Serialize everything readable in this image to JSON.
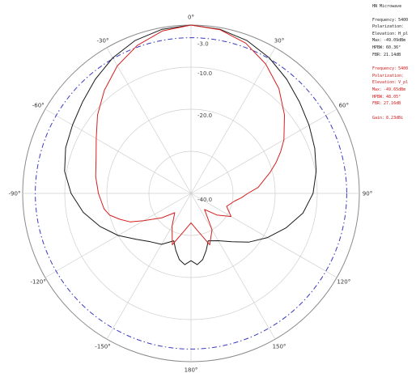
{
  "info": {
    "title": "HN Microwave",
    "black": [
      "Frequency：5400",
      "Polarization：",
      "Elevation：H_pl",
      "Max：-49.09dBm",
      "HPBW：60.36°",
      "FBR：21.14dB"
    ],
    "red": [
      "Frequency：5400",
      "Polarization：",
      "Elevation：V_pl",
      "Max：-49.65dBm",
      "HPBW：48.05°",
      "FBR：27.16dB"
    ],
    "gain": "Gain：8.23dBi"
  },
  "chart_data": {
    "type": "polar-line",
    "angle_ticks": [
      "0°",
      "30°",
      "60°",
      "90°",
      "120°",
      "150°",
      "180°",
      "-150°",
      "-120°",
      "-90°",
      "-60°",
      "-30°"
    ],
    "radial_labels": [
      "-3.0",
      "-10.0",
      "-20.0",
      "-40.0"
    ],
    "r_min_db": -40,
    "r_max_db": 0,
    "dashed_ring_db": -3,
    "colors": {
      "black": "#1a1a1a",
      "red": "#d42020",
      "dashed": "#3a3ac0",
      "grid": "#cfcfcf"
    },
    "series": [
      {
        "color": "black",
        "points": [
          [
            0,
            0
          ],
          [
            10,
            -0.4
          ],
          [
            20,
            -1.3
          ],
          [
            30,
            -2.8
          ],
          [
            40,
            -4.6
          ],
          [
            50,
            -6.3
          ],
          [
            60,
            -7.6
          ],
          [
            70,
            -8.7
          ],
          [
            80,
            -9.8
          ],
          [
            90,
            -11
          ],
          [
            100,
            -13
          ],
          [
            110,
            -16
          ],
          [
            120,
            -19
          ],
          [
            130,
            -22
          ],
          [
            140,
            -25
          ],
          [
            150,
            -27
          ],
          [
            160,
            -28
          ],
          [
            165,
            -26
          ],
          [
            170,
            -24
          ],
          [
            175,
            -23
          ],
          [
            180,
            -24
          ],
          [
            185,
            -23
          ],
          [
            190,
            -24
          ],
          [
            195,
            -26
          ],
          [
            200,
            -28
          ],
          [
            210,
            -26
          ],
          [
            220,
            -25
          ],
          [
            230,
            -23
          ],
          [
            240,
            -20
          ],
          [
            250,
            -17
          ],
          [
            260,
            -14
          ],
          [
            270,
            -11.5
          ],
          [
            280,
            -9.5
          ],
          [
            290,
            -8.3
          ],
          [
            300,
            -7.5
          ],
          [
            310,
            -6.3
          ],
          [
            320,
            -4.6
          ],
          [
            330,
            -2.8
          ],
          [
            340,
            -1.3
          ],
          [
            350,
            -0.4
          ],
          [
            360,
            0
          ]
        ]
      },
      {
        "color": "red",
        "points": [
          [
            0,
            0
          ],
          [
            10,
            -0.5
          ],
          [
            20,
            -2
          ],
          [
            30,
            -4.5
          ],
          [
            40,
            -7.5
          ],
          [
            50,
            -11
          ],
          [
            60,
            -14.5
          ],
          [
            65,
            -16.5
          ],
          [
            70,
            -18.5
          ],
          [
            75,
            -20.5
          ],
          [
            80,
            -22.5
          ],
          [
            85,
            -24
          ],
          [
            90,
            -26.5
          ],
          [
            95,
            -28
          ],
          [
            100,
            -29.5
          ],
          [
            110,
            -31
          ],
          [
            120,
            -29
          ],
          [
            130,
            -32
          ],
          [
            140,
            -35
          ],
          [
            150,
            -30
          ],
          [
            160,
            -27
          ],
          [
            170,
            -31
          ],
          [
            180,
            -33
          ],
          [
            190,
            -31
          ],
          [
            200,
            -27
          ],
          [
            210,
            -31
          ],
          [
            220,
            -34
          ],
          [
            230,
            -31
          ],
          [
            240,
            -27
          ],
          [
            245,
            -24
          ],
          [
            250,
            -22
          ],
          [
            255,
            -20
          ],
          [
            260,
            -19
          ],
          [
            270,
            -18
          ],
          [
            280,
            -17
          ],
          [
            290,
            -16
          ],
          [
            300,
            -14
          ],
          [
            310,
            -11
          ],
          [
            320,
            -8
          ],
          [
            330,
            -5
          ],
          [
            340,
            -2.6
          ],
          [
            350,
            -0.8
          ],
          [
            360,
            0
          ]
        ]
      }
    ]
  }
}
